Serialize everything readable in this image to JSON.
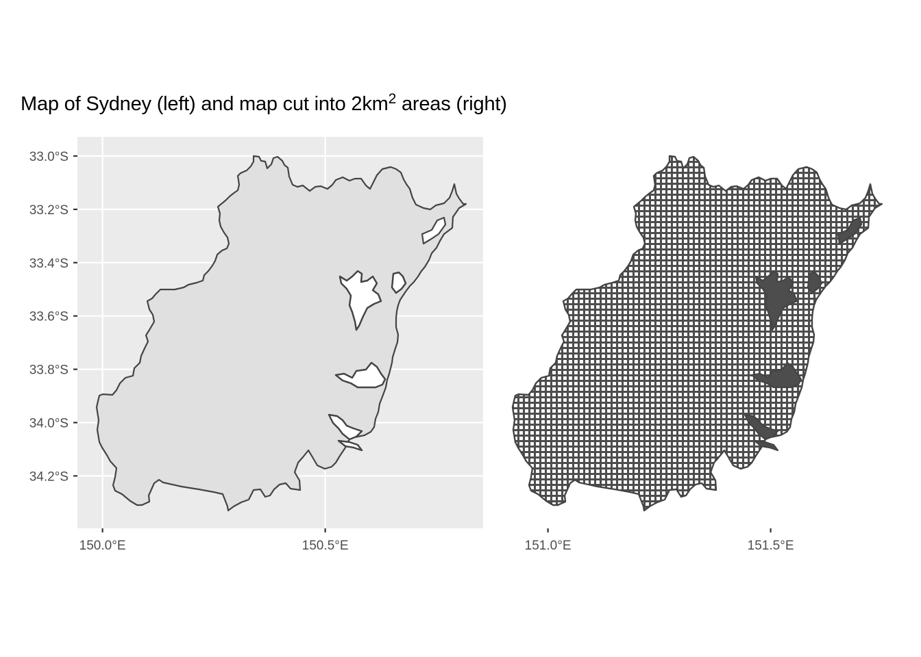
{
  "title": {
    "before": "Map of Sydney (left) and map cut into 2km",
    "superscript": "2",
    "after": " areas (right)"
  },
  "left_map": {
    "y_ticks": [
      {
        "lat": -33.0,
        "label": "33.0°S"
      },
      {
        "lat": -33.2,
        "label": "33.2°S"
      },
      {
        "lat": -33.4,
        "label": "33.4°S"
      },
      {
        "lat": -33.6,
        "label": "33.6°S"
      },
      {
        "lat": -33.8,
        "label": "33.8°S"
      },
      {
        "lat": -34.0,
        "label": "34.0°S"
      },
      {
        "lat": -34.2,
        "label": "34.2°S"
      }
    ],
    "x_ticks": [
      {
        "lon": 150.0,
        "label": "150.0°E"
      },
      {
        "lon": 150.5,
        "label": "150.5°E"
      },
      {
        "lon": 151.0,
        "label": "151.0°E"
      },
      {
        "lon": 151.5,
        "label": "151.5°E"
      }
    ],
    "lon_range": [
      149.89,
      151.71
    ],
    "lat_range": [
      -34.39,
      -32.93
    ],
    "panel_background": "#ebebeb",
    "grid_color": "#ffffff",
    "region_fill": "#e0e0e0",
    "outline_color": "#444444"
  },
  "right_map": {
    "grid_cell": "2km²",
    "fill": "#4d4d4d",
    "cell_color": "#ffffff"
  }
}
